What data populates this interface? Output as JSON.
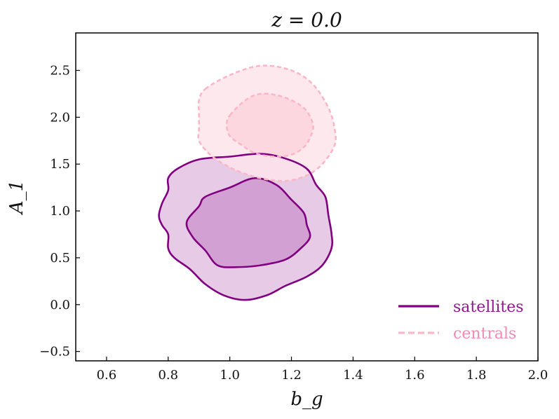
{
  "chart_data": {
    "type": "contour",
    "title": "z = 0.0",
    "xlabel": "b_g",
    "ylabel": "A_1",
    "xlim": [
      0.5,
      2.0
    ],
    "ylim": [
      -0.6,
      2.9
    ],
    "xticks": [
      0.6,
      0.8,
      1.0,
      1.2,
      1.4,
      1.6,
      1.8,
      2.0
    ],
    "xtick_labels": [
      "0.6",
      "0.8",
      "1.0",
      "1.2",
      "1.4",
      "1.6",
      "1.8",
      "2.0"
    ],
    "yticks": [
      -0.5,
      0.0,
      0.5,
      1.0,
      1.5,
      2.0,
      2.5
    ],
    "ytick_labels": [
      "−0.5",
      "0.0",
      "0.5",
      "1.0",
      "1.5",
      "2.0",
      "2.5"
    ],
    "grid": false,
    "legend_position": "bottom-right",
    "series": [
      {
        "name": "satellites",
        "line_style": "solid",
        "line_color": "#800080",
        "outer_fill": "#e6cae6",
        "inner_fill": "#d2a0d2",
        "contours": {
          "outer": [
            [
              0.83,
              1.45
            ],
            [
              0.9,
              1.55
            ],
            [
              1.0,
              1.58
            ],
            [
              1.1,
              1.61
            ],
            [
              1.18,
              1.56
            ],
            [
              1.25,
              1.45
            ],
            [
              1.28,
              1.28
            ],
            [
              1.31,
              1.15
            ],
            [
              1.32,
              0.95
            ],
            [
              1.33,
              0.76
            ],
            [
              1.33,
              0.6
            ],
            [
              1.3,
              0.42
            ],
            [
              1.25,
              0.3
            ],
            [
              1.18,
              0.2
            ],
            [
              1.12,
              0.1
            ],
            [
              1.05,
              0.05
            ],
            [
              0.98,
              0.1
            ],
            [
              0.92,
              0.22
            ],
            [
              0.87,
              0.38
            ],
            [
              0.82,
              0.5
            ],
            [
              0.8,
              0.6
            ],
            [
              0.8,
              0.75
            ],
            [
              0.78,
              0.85
            ],
            [
              0.77,
              0.95
            ],
            [
              0.78,
              1.08
            ],
            [
              0.8,
              1.22
            ],
            [
              0.8,
              1.35
            ]
          ],
          "inner": [
            [
              0.9,
              1.05
            ],
            [
              0.92,
              1.15
            ],
            [
              1.0,
              1.25
            ],
            [
              1.08,
              1.35
            ],
            [
              1.15,
              1.28
            ],
            [
              1.2,
              1.12
            ],
            [
              1.24,
              0.98
            ],
            [
              1.25,
              0.85
            ],
            [
              1.26,
              0.72
            ],
            [
              1.23,
              0.6
            ],
            [
              1.18,
              0.48
            ],
            [
              1.1,
              0.42
            ],
            [
              1.02,
              0.4
            ],
            [
              0.96,
              0.42
            ],
            [
              0.92,
              0.58
            ],
            [
              0.88,
              0.72
            ],
            [
              0.86,
              0.88
            ]
          ]
        }
      },
      {
        "name": "centrals",
        "line_style": "dashed",
        "line_color": "#f9b7c8",
        "outer_fill": "#fde4ea",
        "inner_fill": "#fbd3dd",
        "contours": {
          "outer": [
            [
              0.92,
              2.3
            ],
            [
              1.0,
              2.45
            ],
            [
              1.1,
              2.55
            ],
            [
              1.2,
              2.5
            ],
            [
              1.27,
              2.35
            ],
            [
              1.32,
              2.1
            ],
            [
              1.34,
              1.88
            ],
            [
              1.34,
              1.7
            ],
            [
              1.3,
              1.5
            ],
            [
              1.25,
              1.38
            ],
            [
              1.18,
              1.32
            ],
            [
              1.1,
              1.35
            ],
            [
              1.03,
              1.42
            ],
            [
              0.97,
              1.52
            ],
            [
              0.93,
              1.62
            ],
            [
              0.9,
              1.75
            ],
            [
              0.9,
              1.88
            ],
            [
              0.9,
              2.05
            ],
            [
              0.9,
              2.18
            ]
          ],
          "inner": [
            [
              1.0,
              2.02
            ],
            [
              1.05,
              2.18
            ],
            [
              1.1,
              2.25
            ],
            [
              1.17,
              2.22
            ],
            [
              1.24,
              2.1
            ],
            [
              1.27,
              1.92
            ],
            [
              1.26,
              1.78
            ],
            [
              1.24,
              1.68
            ],
            [
              1.2,
              1.6
            ],
            [
              1.14,
              1.58
            ],
            [
              1.08,
              1.62
            ],
            [
              1.04,
              1.7
            ],
            [
              1.0,
              1.8
            ],
            [
              0.99,
              1.92
            ]
          ]
        }
      }
    ]
  }
}
